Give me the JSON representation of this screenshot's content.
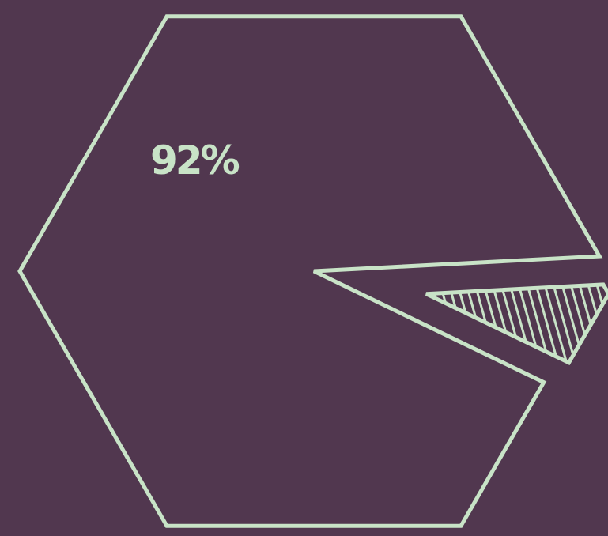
{
  "colors": {
    "background": "#51374f",
    "accent": "#c8e3c7"
  },
  "chart_data": {
    "type": "pie",
    "shape": "hexagon",
    "slices": [
      {
        "value": 92,
        "label": "92%",
        "style": "outline"
      },
      {
        "value": 8,
        "label": "",
        "style": "hatched",
        "exploded": true
      }
    ]
  }
}
